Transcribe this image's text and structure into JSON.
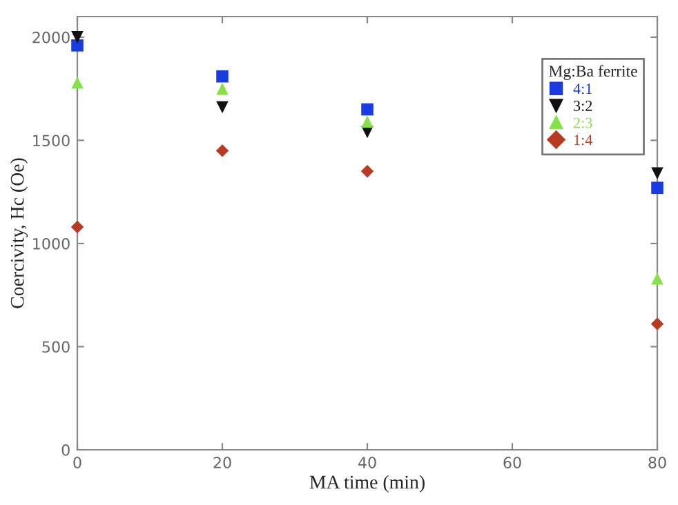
{
  "chart_data": {
    "type": "scatter",
    "xlabel": "MA time (min)",
    "ylabel": "Coercivity, Hc (Oe)",
    "legend_title": "Mg:Ba ferrite",
    "x": [
      0,
      20,
      40,
      80
    ],
    "series": [
      {
        "name": "4:1",
        "color": "#1a3be0",
        "marker": "square",
        "values": [
          1960,
          1810,
          1650,
          1270
        ]
      },
      {
        "name": "3:2",
        "color": "#111111",
        "marker": "triangle_down",
        "values": [
          2000,
          1660,
          1540,
          1340
        ]
      },
      {
        "name": "2:3",
        "color": "#86e04a",
        "marker": "triangle",
        "values": [
          1780,
          1750,
          1590,
          830
        ]
      },
      {
        "name": "1:4",
        "color": "#b83a22",
        "marker": "diamond",
        "values": [
          1080,
          1450,
          1350,
          610
        ]
      }
    ],
    "xlim": [
      0,
      80
    ],
    "ylim": [
      0,
      2100
    ],
    "xticks": [
      0,
      20,
      40,
      60,
      80
    ],
    "yticks": [
      0,
      500,
      1000,
      1500,
      2000
    ],
    "grid": false,
    "legend": "top right"
  }
}
